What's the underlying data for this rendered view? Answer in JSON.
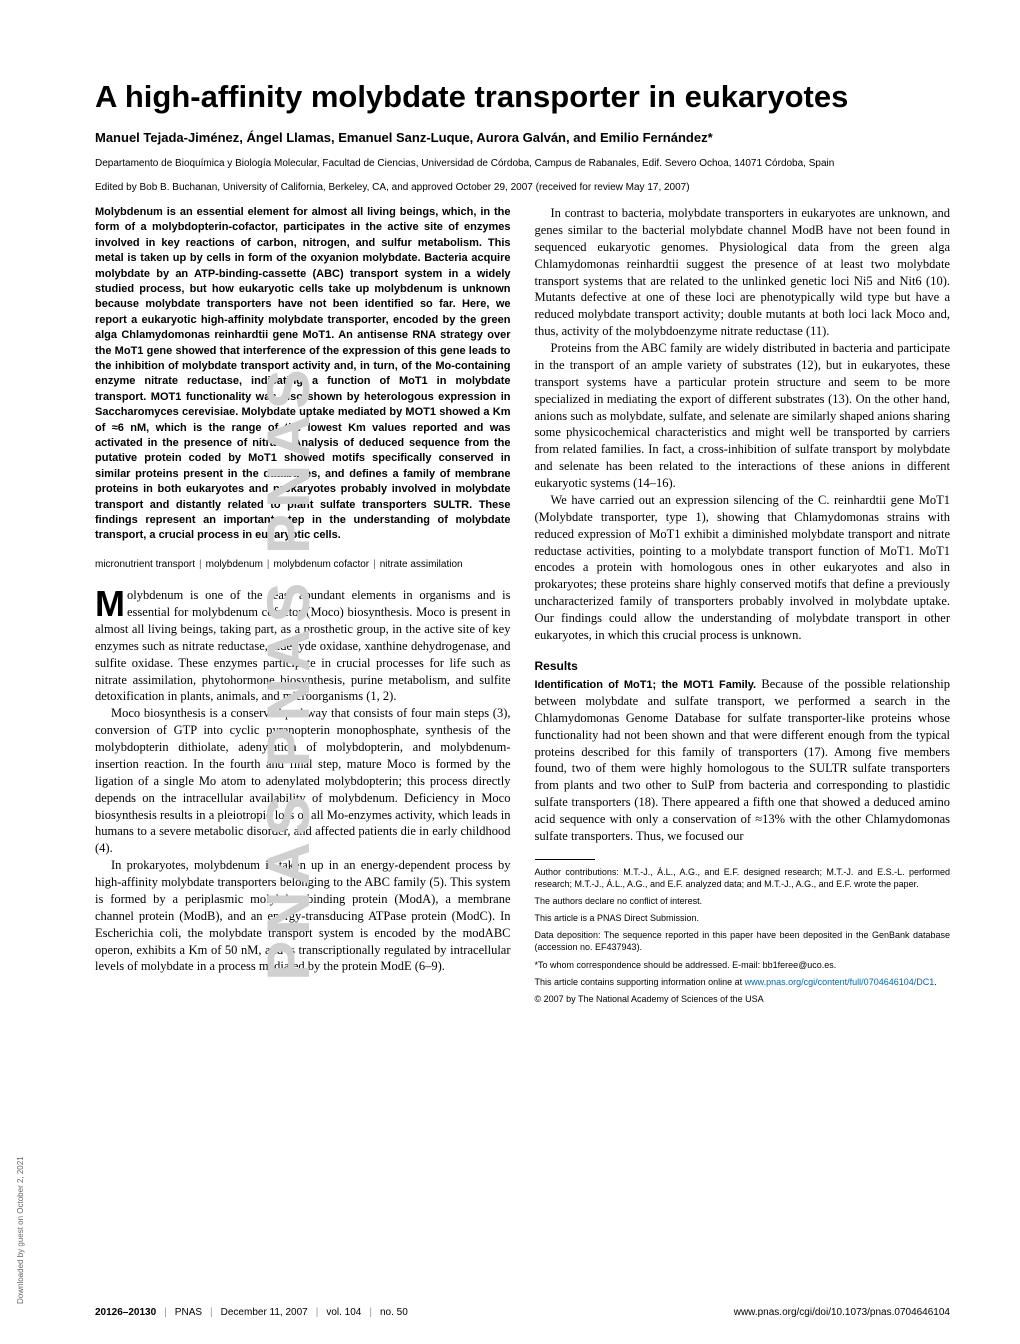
{
  "watermark": "PNAS    PNAS    PNAS",
  "download_note": "Downloaded by guest on October 2, 2021",
  "title": "A high-affinity molybdate transporter in eukaryotes",
  "authors": "Manuel Tejada-Jiménez, Ángel Llamas, Emanuel Sanz-Luque, Aurora Galván, and Emilio Fernández*",
  "affiliation": "Departamento de Bioquímica y Biología Molecular, Facultad de Ciencias, Universidad de Córdoba, Campus de Rabanales, Edif. Severo Ochoa, 14071 Córdoba, Spain",
  "edited": "Edited by Bob B. Buchanan, University of California, Berkeley, CA, and approved October 29, 2007 (received for review May 17, 2007)",
  "abstract": "Molybdenum is an essential element for almost all living beings, which, in the form of a molybdopterin-cofactor, participates in the active site of enzymes involved in key reactions of carbon, nitrogen, and sulfur metabolism. This metal is taken up by cells in form of the oxyanion molybdate. Bacteria acquire molybdate by an ATP-binding-cassette (ABC) transport system in a widely studied process, but how eukaryotic cells take up molybdenum is unknown because molybdate transporters have not been identified so far. Here, we report a eukaryotic high-affinity molybdate transporter, encoded by the green alga Chlamydomonas reinhardtii gene MoT1. An antisense RNA strategy over the MoT1 gene showed that interference of the expression of this gene leads to the inhibition of molybdate transport activity and, in turn, of the Mo-containing enzyme nitrate reductase, indicating a function of MoT1 in molybdate transport. MOT1 functionality was also shown by heterologous expression in Saccharomyces cerevisiae. Molybdate uptake mediated by MOT1 showed a Km of ≈6 nM, which is the range of the lowest Km values reported and was activated in the presence of nitrate. Analysis of deduced sequence from the putative protein coded by MoT1 showed motifs specifically conserved in similar proteins present in the databases, and defines a family of membrane proteins in both eukaryotes and prokaryotes probably involved in molybdate transport and distantly related to plant sulfate transporters SULTR. These findings represent an important step in the understanding of molybdate transport, a crucial process in eukaryotic cells.",
  "keywords": [
    "micronutrient transport",
    "molybdenum",
    "molybdenum cofactor",
    "nitrate assimilation"
  ],
  "dropcap": "M",
  "para1_rest": "olybdenum is one of the least abundant elements in organisms and is essential for molybdenum cofactor (Moco) biosynthesis. Moco is present in almost all living beings, taking part, as a prosthetic group, in the active site of key enzymes such as nitrate reductase, aldehyde oxidase, xanthine dehydrogenase, and sulfite oxidase. These enzymes participate in crucial processes for life such as nitrate assimilation, phytohormone biosynthesis, purine metabolism, and sulfite detoxification in plants, animals, and microorganisms (1, 2).",
  "para2": "Moco biosynthesis is a conserved pathway that consists of four main steps (3), conversion of GTP into cyclic pyranopterin monophosphate, synthesis of the molybdopterin dithiolate, adenylation of molybdopterin, and molybdenum-insertion reaction. In the fourth and final step, mature Moco is formed by the ligation of a single Mo atom to adenylated molybdopterin; this process directly depends on the intracellular availability of molybdenum. Deficiency in Moco biosynthesis results in a pleiotropic loss of all Mo-enzymes activity, which leads in humans to a severe metabolic disorder, and affected patients die in early childhood (4).",
  "para3": "In prokaryotes, molybdenum is taken up in an energy-dependent process by high-affinity molybdate transporters belonging to the ABC family (5). This system is formed by a periplasmic molybdate-binding protein (ModA), a membrane channel protein (ModB), and an energy-transducing ATPase protein (ModC). In Escherichia coli, the molybdate transport system is encoded by the modABC operon, exhibits a Km of 50 nM, and is transcriptionally regulated by intracellular levels of molybdate in a process mediated by the protein ModE (6–9).",
  "para4": "In contrast to bacteria, molybdate transporters in eukaryotes are unknown, and genes similar to the bacterial molybdate channel ModB have not been found in sequenced eukaryotic genomes. Physiological data from the green alga Chlamydomonas reinhardtii suggest the presence of at least two molybdate transport systems that are related to the unlinked genetic loci Ni5 and Nit6 (10). Mutants defective at one of these loci are phenotypically wild type but have a reduced molybdate transport activity; double mutants at both loci lack Moco and, thus, activity of the molybdoenzyme nitrate reductase (11).",
  "para5": "Proteins from the ABC family are widely distributed in bacteria and participate in the transport of an ample variety of substrates (12), but in eukaryotes, these transport systems have a particular protein structure and seem to be more specialized in mediating the export of different substrates (13). On the other hand, anions such as molybdate, sulfate, and selenate are similarly shaped anions sharing some physicochemical characteristics and might well be transported by carriers from related families. In fact, a cross-inhibition of sulfate transport by molybdate and selenate has been related to the interactions of these anions in different eukaryotic systems (14–16).",
  "para6": "We have carried out an expression silencing of the C. reinhardtii gene MoT1 (Molybdate transporter, type 1), showing that Chlamydomonas strains with reduced expression of MoT1 exhibit a diminished molybdate transport and nitrate reductase activities, pointing to a molybdate transport function of MoT1. MoT1 encodes a protein with homologous ones in other eukaryotes and also in prokaryotes; these proteins share highly conserved motifs that define a previously uncharacterized family of transporters probably involved in molybdate uptake. Our findings could allow the understanding of molybdate transport in other eukaryotes, in which this crucial process is unknown.",
  "results_heading": "Results",
  "results_sub": "Identification of MoT1; the MOT1 Family.",
  "results_text": " Because of the possible relationship between molybdate and sulfate transport, we performed a search in the Chlamydomonas Genome Database for sulfate transporter-like proteins whose functionality had not been shown and that were different enough from the typical proteins described for this family of transporters (17). Among five members found, two of them were highly homologous to the SULTR sulfate transporters from plants and two other to SulP from bacteria and corresponding to plastidic sulfate transporters (18). There appeared a fifth one that showed a deduced amino acid sequence with only a conservation of ≈13% with the other Chlamydomonas sulfate transporters. Thus, we focused our",
  "footnotes": {
    "contributions": "Author contributions: M.T.-J., Á.L., A.G., and E.F. designed research; M.T.-J. and E.S.-L. performed research; M.T.-J., Á.L., A.G., and E.F. analyzed data; and M.T.-J., A.G., and E.F. wrote the paper.",
    "conflict": "The authors declare no conflict of interest.",
    "submission": "This article is a PNAS Direct Submission.",
    "deposition": "Data deposition: The sequence reported in this paper have been deposited in the GenBank database (accession no. EF437943).",
    "correspondence": "*To whom correspondence should be addressed. E-mail: bb1feree@uco.es.",
    "supporting_pre": "This article contains supporting information online at ",
    "supporting_link": "www.pnas.org/cgi/content/full/0704646104/DC1",
    "supporting_post": ".",
    "copyright": "© 2007 by The National Academy of Sciences of the USA"
  },
  "footer": {
    "left_pages": "20126–20130",
    "left_journal": "PNAS",
    "left_date": "December 11, 2007",
    "left_vol": "vol. 104",
    "left_issue": "no. 50",
    "right": "www.pnas.org/cgi/doi/10.1073/pnas.0704646104"
  }
}
